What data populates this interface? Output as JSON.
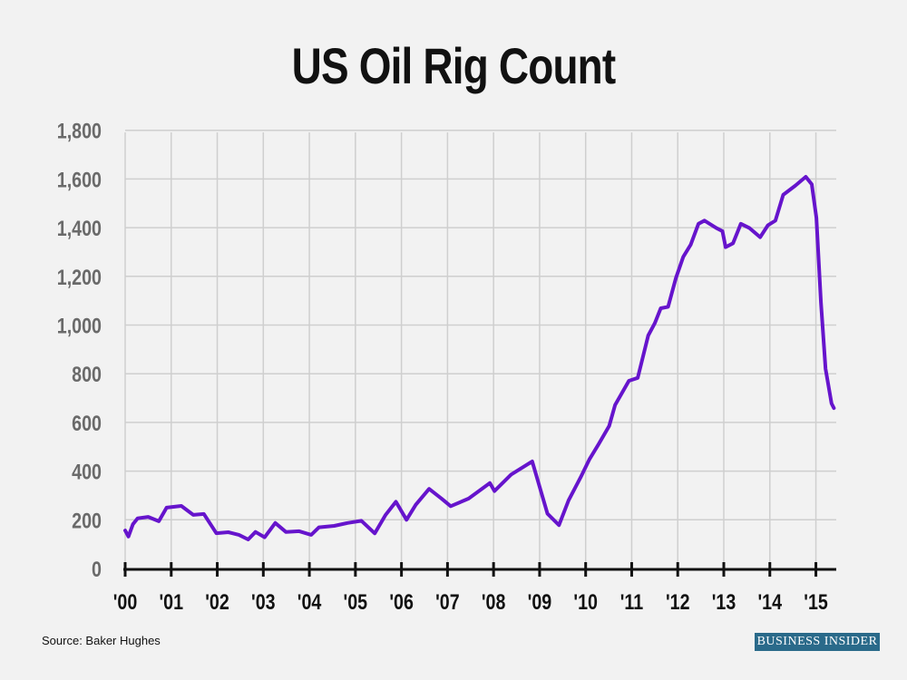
{
  "chart_data": {
    "type": "line",
    "title": "US Oil Rig Count",
    "xlabel": "",
    "ylabel": "",
    "ylim": [
      0,
      1800
    ],
    "xlim": [
      2000,
      2015.4
    ],
    "grid": true,
    "y_ticks": [
      "0",
      "200",
      "400",
      "600",
      "800",
      "1,000",
      "1,200",
      "1,400",
      "1,600",
      "1,800"
    ],
    "y_tick_values": [
      0,
      200,
      400,
      600,
      800,
      1000,
      1200,
      1400,
      1600,
      1800
    ],
    "x_ticks": [
      "'00",
      "'01",
      "'02",
      "'03",
      "'04",
      "'05",
      "'06",
      "'07",
      "'08",
      "'09",
      "'10",
      "'11",
      "'12",
      "'13",
      "'14",
      "'15"
    ],
    "x_tick_values": [
      2000,
      2001,
      2002,
      2003,
      2004,
      2005,
      2006,
      2007,
      2008,
      2009,
      2010,
      2011,
      2012,
      2013,
      2014,
      2015
    ],
    "series": [
      {
        "color": "#6614cc",
        "x": [
          2000.0,
          2000.07,
          2000.17,
          2000.27,
          2000.5,
          2000.73,
          2000.9,
          2001.22,
          2001.48,
          2001.71,
          2001.98,
          2002.24,
          2002.47,
          2002.67,
          2002.83,
          2003.03,
          2003.26,
          2003.49,
          2003.78,
          2004.04,
          2004.21,
          2004.54,
          2004.83,
          2005.13,
          2005.42,
          2005.65,
          2005.88,
          2006.11,
          2006.31,
          2006.6,
          2006.87,
          2007.07,
          2007.46,
          2007.92,
          2008.02,
          2008.38,
          2008.84,
          2009.17,
          2009.42,
          2009.63,
          2009.89,
          2010.08,
          2010.28,
          2010.51,
          2010.64,
          2010.94,
          2011.13,
          2011.36,
          2011.5,
          2011.63,
          2011.79,
          2011.96,
          2012.12,
          2012.28,
          2012.45,
          2012.58,
          2012.84,
          2012.97,
          2013.04,
          2013.2,
          2013.37,
          2013.56,
          2013.79,
          2013.96,
          2014.12,
          2014.29,
          2014.55,
          2014.78,
          2014.91,
          2015.01,
          2015.11,
          2015.21,
          2015.34,
          2015.39
        ],
        "values": [
          156,
          131,
          182,
          206,
          212,
          194,
          250,
          257,
          220,
          224,
          145,
          149,
          138,
          119,
          150,
          128,
          187,
          150,
          153,
          138,
          169,
          175,
          187,
          196,
          144,
          219,
          274,
          200,
          262,
          327,
          287,
          256,
          287,
          351,
          318,
          386,
          440,
          225,
          178,
          280,
          374,
          448,
          510,
          585,
          672,
          771,
          783,
          957,
          1007,
          1069,
          1075,
          1193,
          1280,
          1330,
          1416,
          1429,
          1398,
          1386,
          1320,
          1336,
          1416,
          1398,
          1361,
          1410,
          1429,
          1535,
          1572,
          1609,
          1578,
          1441,
          1094,
          820,
          678,
          659
        ]
      }
    ]
  },
  "source": "Source: Baker Hughes",
  "logo_text": "BUSINESS INSIDER"
}
